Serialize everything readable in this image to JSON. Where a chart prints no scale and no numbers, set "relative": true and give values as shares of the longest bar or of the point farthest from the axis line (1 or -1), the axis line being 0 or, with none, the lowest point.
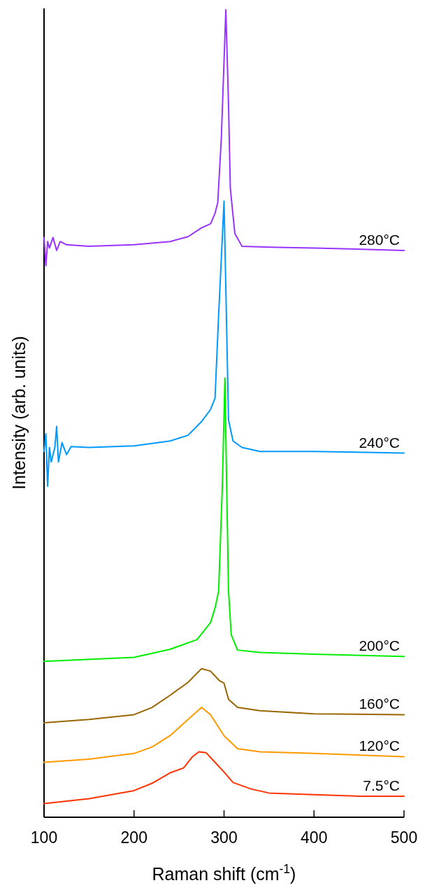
{
  "chart_data": {
    "type": "line",
    "relative": true,
    "xlabel": "Raman shift (cm$^{-1}$)",
    "ylabel": "Intensity (arb. units)",
    "xlim": [
      100,
      500
    ],
    "xticks": [
      100,
      200,
      300,
      400,
      500
    ],
    "series": [
      {
        "name": "7.5°C",
        "color": "#ff3300",
        "x": [
          100,
          150,
          200,
          220,
          240,
          255,
          265,
          272,
          280,
          290,
          300,
          310,
          330,
          350,
          400,
          450,
          500
        ],
        "values": [
          0.017,
          0.023,
          0.033,
          0.042,
          0.055,
          0.061,
          0.075,
          0.081,
          0.08,
          0.068,
          0.056,
          0.043,
          0.035,
          0.03,
          0.028,
          0.026,
          0.026
        ]
      },
      {
        "name": "120°C",
        "color": "#ff9900",
        "x": [
          100,
          150,
          200,
          220,
          240,
          260,
          275,
          285,
          300,
          315,
          340,
          400,
          500
        ],
        "values": [
          0.068,
          0.072,
          0.079,
          0.087,
          0.101,
          0.121,
          0.136,
          0.127,
          0.101,
          0.085,
          0.081,
          0.079,
          0.075
        ]
      },
      {
        "name": "160°C",
        "color": "#996600",
        "x": [
          100,
          150,
          200,
          220,
          240,
          260,
          275,
          285,
          295,
          300,
          305,
          315,
          340,
          400,
          500
        ],
        "values": [
          0.117,
          0.121,
          0.127,
          0.136,
          0.151,
          0.167,
          0.184,
          0.181,
          0.169,
          0.166,
          0.146,
          0.136,
          0.132,
          0.128,
          0.127
        ]
      },
      {
        "name": "200°C",
        "color": "#00ee00",
        "x": [
          100,
          200,
          240,
          270,
          285,
          290,
          294,
          298,
          301,
          303,
          305,
          308,
          315,
          340,
          400,
          500
        ],
        "values": [
          0.193,
          0.198,
          0.208,
          0.22,
          0.241,
          0.259,
          0.28,
          0.406,
          0.544,
          0.406,
          0.28,
          0.226,
          0.207,
          0.204,
          0.202,
          0.199
        ]
      },
      {
        "name": "240°C",
        "color": "#0099ff",
        "x": [
          100,
          102,
          104,
          106,
          108,
          112,
          114,
          116,
          120,
          125,
          130,
          150,
          200,
          240,
          260,
          275,
          285,
          290,
          294,
          300,
          305,
          310,
          320,
          340,
          400,
          500
        ],
        "values": [
          0.453,
          0.475,
          0.41,
          0.458,
          0.44,
          0.458,
          0.484,
          0.44,
          0.464,
          0.449,
          0.459,
          0.458,
          0.46,
          0.466,
          0.473,
          0.49,
          0.505,
          0.519,
          0.622,
          0.763,
          0.492,
          0.466,
          0.458,
          0.453,
          0.453,
          0.451
        ]
      },
      {
        "name": "280°C",
        "color": "#9933ff",
        "x": [
          100,
          102,
          104,
          106,
          110,
          114,
          118,
          125,
          150,
          200,
          240,
          260,
          275,
          285,
          290,
          293,
          297,
          302,
          305,
          307,
          312,
          320,
          350,
          400,
          500
        ],
        "values": [
          0.718,
          0.683,
          0.713,
          0.705,
          0.718,
          0.702,
          0.713,
          0.709,
          0.707,
          0.709,
          0.713,
          0.719,
          0.73,
          0.735,
          0.748,
          0.761,
          0.841,
          1.0,
          0.882,
          0.779,
          0.723,
          0.707,
          0.706,
          0.705,
          0.702
        ]
      }
    ]
  }
}
